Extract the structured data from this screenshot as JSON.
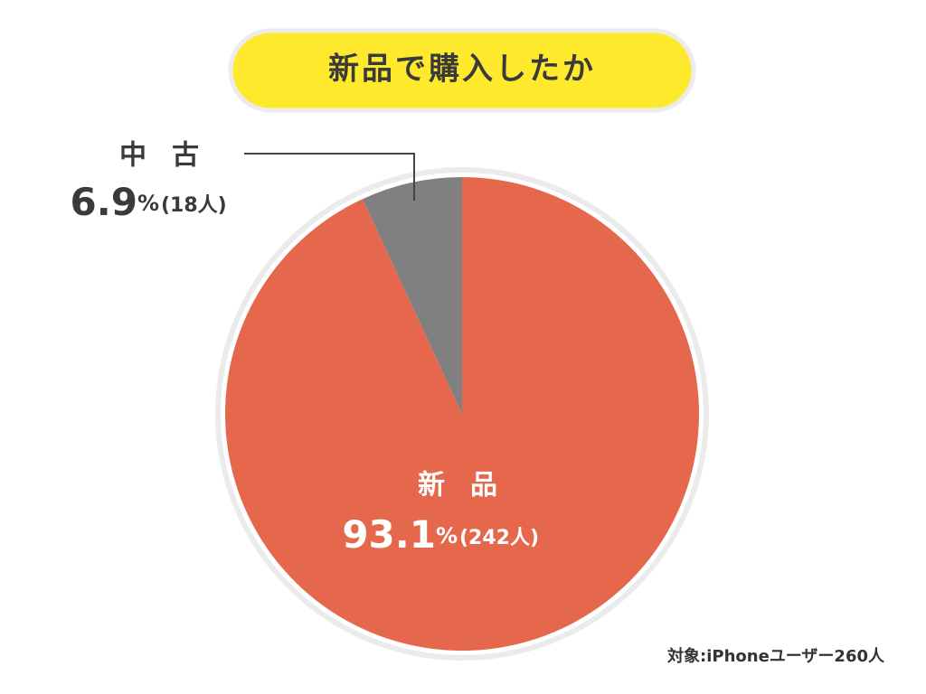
{
  "chart_data": {
    "type": "pie",
    "title": "新品で購入したか",
    "categories": [
      "新品",
      "中古"
    ],
    "values": [
      93.1,
      6.9
    ],
    "value_labels": [
      "93.1%",
      "6.9%"
    ],
    "count_labels": [
      "(242人)",
      "(18人)"
    ],
    "colors": [
      "#e5674c",
      "#808080"
    ],
    "note": "対象:iPhoneユーザー260人"
  }
}
